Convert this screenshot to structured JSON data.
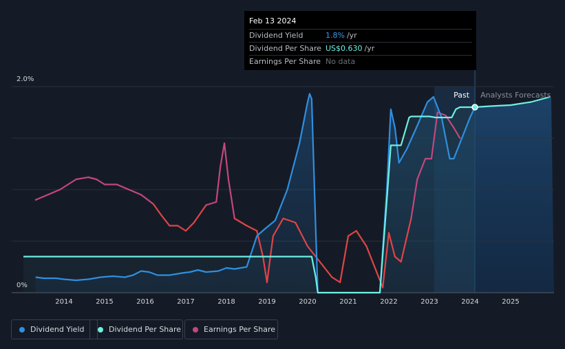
{
  "tooltip": {
    "date": "Feb 13 2024",
    "rows": [
      {
        "label": "Dividend Yield",
        "value": "1.8%",
        "unit": "/yr"
      },
      {
        "label": "Dividend Per Share",
        "value": "US$0.630",
        "unit": "/yr"
      },
      {
        "label": "Earnings Per Share",
        "value": "No data",
        "unit": ""
      }
    ]
  },
  "chart_data": {
    "type": "line",
    "xlabel": "",
    "ylabel": "",
    "y_tick_labels": [
      {
        "label": "2.0%",
        "value": 2.0
      },
      {
        "label": "0%",
        "value": 0
      }
    ],
    "xlim": [
      2013.0,
      2026.0
    ],
    "ylim": [
      0,
      2.0
    ],
    "x_ticks": [
      2014,
      2015,
      2016,
      2017,
      2018,
      2019,
      2020,
      2021,
      2022,
      2023,
      2024,
      2025
    ],
    "grid": true,
    "legend_position": "bottom-left",
    "region_labels": {
      "past": "Past",
      "forecast": "Analysts Forecasts"
    },
    "marker": {
      "x": 2024.12,
      "y": 1.8
    },
    "colors": {
      "dividend_yield": "#2f8fe0",
      "dividend_per_share": "#6ef0e2",
      "earnings_per_share": "#c4477e",
      "eps_negative": "#e04545"
    },
    "series": [
      {
        "name": "Dividend Yield",
        "points": [
          [
            2013.3,
            0.15
          ],
          [
            2013.5,
            0.14
          ],
          [
            2013.8,
            0.14
          ],
          [
            2014.0,
            0.13
          ],
          [
            2014.3,
            0.12
          ],
          [
            2014.6,
            0.13
          ],
          [
            2014.9,
            0.15
          ],
          [
            2015.2,
            0.16
          ],
          [
            2015.5,
            0.15
          ],
          [
            2015.7,
            0.17
          ],
          [
            2015.9,
            0.21
          ],
          [
            2016.1,
            0.2
          ],
          [
            2016.3,
            0.17
          ],
          [
            2016.6,
            0.17
          ],
          [
            2016.9,
            0.19
          ],
          [
            2017.1,
            0.2
          ],
          [
            2017.3,
            0.22
          ],
          [
            2017.5,
            0.2
          ],
          [
            2017.8,
            0.21
          ],
          [
            2018.0,
            0.24
          ],
          [
            2018.2,
            0.23
          ],
          [
            2018.5,
            0.25
          ],
          [
            2018.75,
            0.55
          ],
          [
            2018.95,
            0.62
          ],
          [
            2019.2,
            0.7
          ],
          [
            2019.5,
            1.0
          ],
          [
            2019.8,
            1.45
          ],
          [
            2020.0,
            1.85
          ],
          [
            2020.05,
            1.93
          ],
          [
            2020.1,
            1.88
          ],
          [
            2020.2,
            0.6
          ],
          [
            2020.25,
            0.0
          ],
          [
            2021.78,
            0.0
          ],
          [
            2021.95,
            1.0
          ],
          [
            2022.05,
            1.78
          ],
          [
            2022.15,
            1.6
          ],
          [
            2022.25,
            1.26
          ],
          [
            2022.45,
            1.4
          ],
          [
            2022.7,
            1.62
          ],
          [
            2022.95,
            1.85
          ],
          [
            2023.1,
            1.9
          ],
          [
            2023.3,
            1.7
          ],
          [
            2023.5,
            1.3
          ],
          [
            2023.6,
            1.3
          ],
          [
            2023.8,
            1.5
          ],
          [
            2024.0,
            1.7
          ],
          [
            2024.12,
            1.8
          ]
        ]
      },
      {
        "name": "Dividend Per Share",
        "points": [
          [
            2013.0,
            0.35
          ],
          [
            2014.0,
            0.35
          ],
          [
            2020.1,
            0.35
          ],
          [
            2020.2,
            0.15
          ],
          [
            2020.25,
            0.0
          ],
          [
            2021.78,
            0.0
          ],
          [
            2021.95,
            0.9
          ],
          [
            2022.05,
            1.43
          ],
          [
            2022.3,
            1.43
          ],
          [
            2022.5,
            1.7
          ],
          [
            2022.55,
            1.71
          ],
          [
            2023.0,
            1.71
          ],
          [
            2023.15,
            1.7
          ],
          [
            2023.55,
            1.7
          ],
          [
            2023.65,
            1.78
          ],
          [
            2023.75,
            1.8
          ],
          [
            2024.12,
            1.8
          ],
          [
            2024.5,
            1.81
          ],
          [
            2025.0,
            1.82
          ],
          [
            2025.5,
            1.85
          ],
          [
            2026.0,
            1.9
          ]
        ]
      },
      {
        "name": "Earnings Per Share",
        "points": [
          [
            2013.3,
            0.9
          ],
          [
            2013.6,
            0.95
          ],
          [
            2013.9,
            1.0
          ],
          [
            2014.1,
            1.05
          ],
          [
            2014.3,
            1.1
          ],
          [
            2014.6,
            1.12
          ],
          [
            2014.8,
            1.1
          ],
          [
            2015.0,
            1.05
          ],
          [
            2015.3,
            1.05
          ],
          [
            2015.6,
            1.0
          ],
          [
            2015.9,
            0.95
          ],
          [
            2016.2,
            0.86
          ],
          [
            2016.4,
            0.75
          ],
          [
            2016.6,
            0.65
          ],
          [
            2016.8,
            0.65
          ],
          [
            2017.0,
            0.6
          ],
          [
            2017.2,
            0.68
          ],
          [
            2017.5,
            0.85
          ],
          [
            2017.75,
            0.88
          ],
          [
            2017.85,
            1.22
          ],
          [
            2017.95,
            1.45
          ],
          [
            2018.05,
            1.1
          ],
          [
            2018.2,
            0.72
          ],
          [
            2018.5,
            0.65
          ],
          [
            2018.75,
            0.6
          ],
          [
            2018.9,
            0.35
          ],
          [
            2019.0,
            0.1
          ],
          [
            2019.15,
            0.55
          ],
          [
            2019.4,
            0.72
          ],
          [
            2019.7,
            0.68
          ],
          [
            2020.0,
            0.45
          ],
          [
            2020.3,
            0.3
          ],
          [
            2020.6,
            0.15
          ],
          [
            2020.8,
            0.1
          ],
          [
            2021.0,
            0.55
          ],
          [
            2021.2,
            0.6
          ],
          [
            2021.45,
            0.45
          ],
          [
            2021.7,
            0.2
          ],
          [
            2021.85,
            0.05
          ],
          [
            2022.0,
            0.58
          ],
          [
            2022.15,
            0.35
          ],
          [
            2022.3,
            0.3
          ],
          [
            2022.55,
            0.72
          ],
          [
            2022.7,
            1.1
          ],
          [
            2022.9,
            1.3
          ],
          [
            2023.05,
            1.3
          ],
          [
            2023.2,
            1.75
          ],
          [
            2023.4,
            1.72
          ],
          [
            2023.6,
            1.6
          ],
          [
            2023.75,
            1.5
          ]
        ]
      }
    ]
  },
  "legend": [
    {
      "label": "Dividend Yield",
      "color": "#2f8fe0"
    },
    {
      "label": "Dividend Per Share",
      "color": "#6ef0e2"
    },
    {
      "label": "Earnings Per Share",
      "color": "#c4477e"
    }
  ]
}
